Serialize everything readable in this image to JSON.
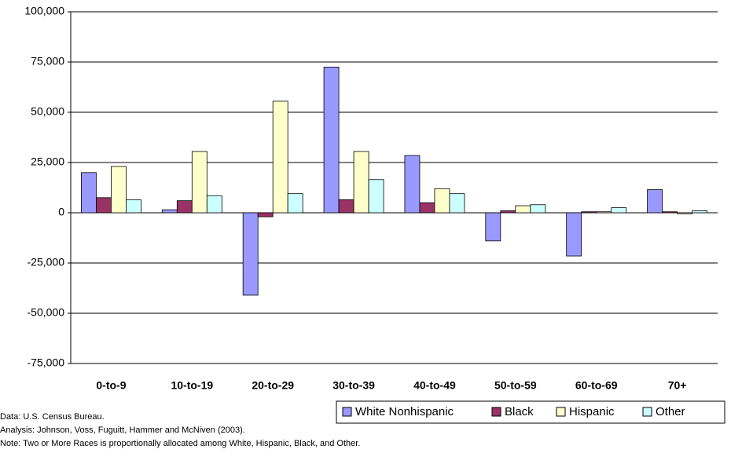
{
  "chart_data": {
    "type": "bar",
    "categories": [
      "0-to-9",
      "10-to-19",
      "20-to-29",
      "30-to-39",
      "40-to-49",
      "50-to-59",
      "60-to-69",
      "70+"
    ],
    "series": [
      {
        "name": "White Nonhispanic",
        "color": "#9999ff",
        "values": [
          20000,
          1500,
          -41000,
          72500,
          28500,
          -14000,
          -21500,
          11500
        ]
      },
      {
        "name": "Black",
        "color": "#993366",
        "values": [
          7500,
          6000,
          -2000,
          6500,
          5000,
          1000,
          500,
          500
        ]
      },
      {
        "name": "Hispanic",
        "color": "#ffffcc",
        "values": [
          23000,
          30500,
          55500,
          30500,
          12000,
          3500,
          500,
          -500
        ]
      },
      {
        "name": "Other",
        "color": "#ccffff",
        "values": [
          6500,
          8500,
          9500,
          16500,
          9500,
          4000,
          2500,
          1000
        ]
      }
    ],
    "ylim": [
      -75000,
      100000
    ],
    "yticks": [
      {
        "value": -75000,
        "label": "-75,000"
      },
      {
        "value": -50000,
        "label": "-50,000"
      },
      {
        "value": -25000,
        "label": "-25,000"
      },
      0,
      {
        "value": 25000,
        "label": "25,000"
      },
      {
        "value": 50000,
        "label": "50,000"
      },
      {
        "value": 75000,
        "label": "75,000"
      },
      {
        "value": 100000,
        "label": "100,000"
      }
    ],
    "grid": true,
    "notes": [
      "Data: U.S. Census Bureau.",
      "Analysis: Johnson, Voss, Fuguitt, Hammer and McNiven (2003).",
      "Note: Two or More Races is proportionally allocated among White, Hispanic, Black, and Other."
    ]
  }
}
